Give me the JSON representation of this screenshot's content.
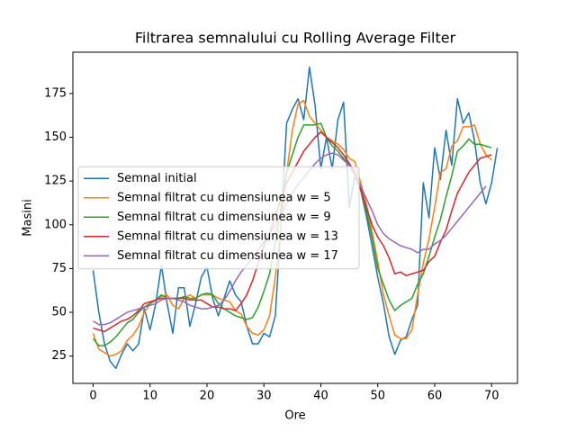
{
  "chart_data": {
    "type": "line",
    "title": "Filtrarea semnalului cu Rolling Average Filter",
    "xlabel": "Ore",
    "ylabel": "Masini",
    "x": [
      0,
      1,
      2,
      3,
      4,
      5,
      6,
      7,
      8,
      9,
      10,
      11,
      12,
      13,
      14,
      15,
      16,
      17,
      18,
      19,
      20,
      21,
      22,
      23,
      24,
      25,
      26,
      27,
      28,
      29,
      30,
      31,
      32,
      33,
      34,
      35,
      36,
      37,
      38,
      39,
      40,
      41,
      42,
      43,
      44,
      45,
      46,
      47,
      48,
      49,
      50,
      51,
      52,
      53,
      54,
      55,
      56,
      57,
      58,
      59,
      60,
      61,
      62,
      63,
      64,
      65,
      66,
      67,
      68,
      69,
      70,
      71
    ],
    "xlim": [
      -3.55,
      74.55
    ],
    "xticks": [
      0,
      10,
      20,
      30,
      40,
      50,
      60,
      70
    ],
    "ylim": [
      9.4,
      198.6
    ],
    "yticks": [
      25,
      50,
      75,
      100,
      125,
      150,
      175
    ],
    "legend": "center left",
    "series": [
      {
        "name": "Semnal initial",
        "color": "#1f77b4",
        "values": [
          74,
          50,
          32,
          22,
          18,
          26,
          32,
          28,
          32,
          52,
          40,
          55,
          77,
          55,
          38,
          64,
          64,
          42,
          55,
          70,
          76,
          58,
          48,
          58,
          68,
          60,
          56,
          42,
          32,
          32,
          38,
          36,
          48,
          100,
          158,
          166,
          172,
          160,
          190,
          168,
          132,
          150,
          132,
          160,
          170,
          110,
          128,
          120,
          105,
          88,
          70,
          55,
          36,
          26,
          34,
          36,
          46,
          54,
          124,
          104,
          144,
          126,
          154,
          134,
          172,
          158,
          164,
          148,
          124,
          112,
          124,
          144
        ]
      },
      {
        "name": "Semnal filtrat cu dimensiunea w = 5",
        "color": "#ff7f0e",
        "values": [
          38,
          29,
          27,
          25,
          26,
          28,
          34,
          37,
          42,
          50,
          55,
          57,
          59,
          60,
          54,
          52,
          58,
          60,
          58,
          60,
          60,
          60,
          58,
          57,
          56,
          51,
          49,
          42,
          38,
          37,
          40,
          48,
          70,
          100,
          130,
          154,
          169,
          171,
          162,
          158,
          154,
          150,
          148,
          146,
          143,
          138,
          136,
          124,
          112,
          96,
          79,
          60,
          48,
          37,
          35,
          35,
          40,
          60,
          78,
          92,
          110,
          130,
          132,
          145,
          148,
          156,
          156,
          157,
          146,
          140,
          137,
          null
        ]
      },
      {
        "name": "Semnal filtrat cu dimensiunea w = 9",
        "color": "#2ca02c",
        "values": [
          35,
          31,
          31,
          33,
          36,
          40,
          44,
          46,
          50,
          53,
          55,
          57,
          60,
          58,
          58,
          58,
          59,
          58,
          58,
          60,
          61,
          60,
          55,
          52,
          50,
          48,
          47,
          46,
          47,
          53,
          62,
          72,
          90,
          110,
          130,
          140,
          150,
          157,
          157,
          157,
          158,
          150,
          145,
          142,
          138,
          134,
          130,
          122,
          108,
          93,
          75,
          66,
          57,
          51,
          54,
          56,
          58,
          66,
          72,
          82,
          93,
          103,
          116,
          128,
          142,
          145,
          149,
          146,
          146,
          145,
          144,
          null
        ]
      },
      {
        "name": "Semnal filtrat cu dimensiunea w = 13",
        "color": "#d62728",
        "values": [
          41,
          40,
          39,
          41,
          43,
          45,
          46,
          48,
          51,
          55,
          56,
          57,
          58,
          58,
          58,
          58,
          58,
          57,
          57,
          57,
          55,
          53,
          53,
          52,
          52,
          51,
          55,
          60,
          68,
          78,
          88,
          95,
          105,
          115,
          124,
          130,
          136,
          142,
          146,
          150,
          153,
          150,
          147,
          144,
          140,
          135,
          130,
          120,
          110,
          100,
          93,
          88,
          81,
          72,
          73,
          71,
          72,
          73,
          74,
          79,
          82,
          90,
          97,
          108,
          118,
          124,
          130,
          134,
          138,
          139,
          140,
          null
        ]
      },
      {
        "name": "Semnal filtrat cu dimensiunea w = 17",
        "color": "#9467bd",
        "values": [
          45,
          43,
          43,
          44,
          46,
          48,
          50,
          51,
          52,
          53,
          54,
          55,
          57,
          58,
          58,
          57,
          56,
          54,
          53,
          52,
          52,
          53,
          54,
          57,
          62,
          68,
          73,
          77,
          81,
          86,
          90,
          95,
          100,
          106,
          112,
          118,
          123,
          127,
          131,
          135,
          138,
          140,
          141,
          140,
          137,
          134,
          128,
          122,
          115,
          108,
          100,
          95,
          92,
          90,
          88,
          87,
          86,
          84,
          86,
          86,
          89,
          91,
          94,
          98,
          102,
          106,
          110,
          114,
          118,
          122,
          null,
          null
        ]
      }
    ]
  }
}
